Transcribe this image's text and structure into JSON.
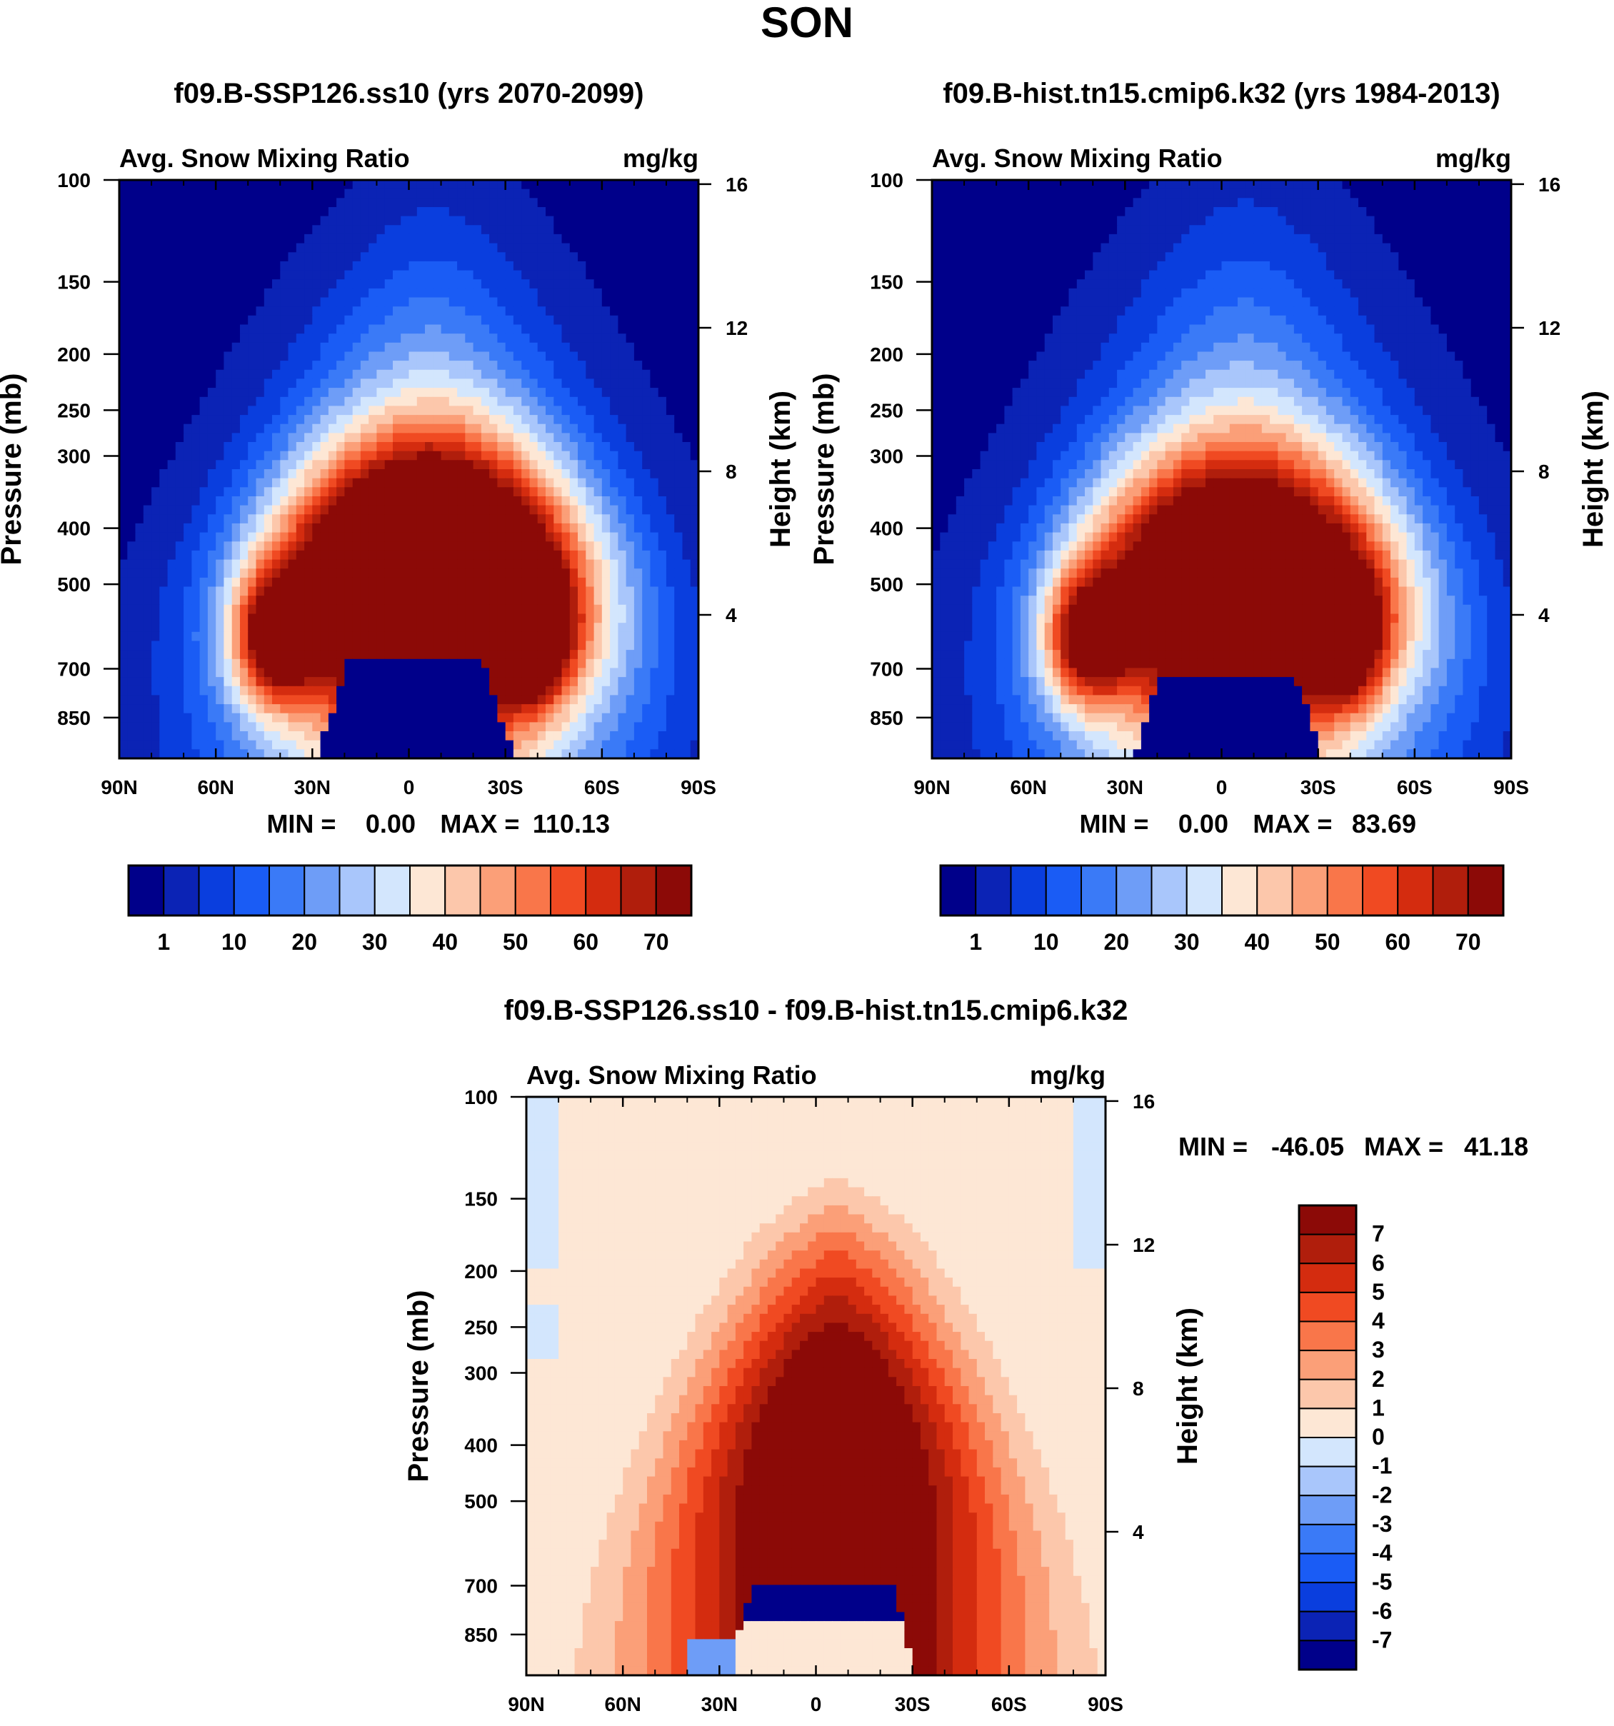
{
  "figure": {
    "title": "SON"
  },
  "colors": {
    "abs_levels": [
      "#00008a",
      "#0b23b5",
      "#0a3ede",
      "#1a5cf5",
      "#3a7af7",
      "#6e9df7",
      "#a9c6fb",
      "#d3e6fd",
      "#fde7d5",
      "#fcc7ab",
      "#fb9f78",
      "#f9764a",
      "#f04a22",
      "#d42c0f",
      "#b01e0c",
      "#8c0a07"
    ],
    "diff_levels": [
      "#00008a",
      "#0b23b5",
      "#0a3ede",
      "#1a5cf5",
      "#3a7af7",
      "#6e9df7",
      "#a9c6fb",
      "#d3e6fd",
      "#fde7d5",
      "#fcc7ab",
      "#fb9f78",
      "#f9764a",
      "#f04a22",
      "#d42c0f",
      "#b01e0c",
      "#8c0a07"
    ]
  },
  "chart_data": [
    {
      "id": "panel-ssp126",
      "type": "heatmap",
      "title": "f09.B-SSP126.ss10 (yrs 2070-2099)",
      "left_label": "Avg. Snow Mixing Ratio",
      "right_label": "mg/kg",
      "xlabel": "",
      "ylabel": "Pressure (mb)",
      "y2label": "Height (km)",
      "x_ticks": [
        "90N",
        "60N",
        "30N",
        "0",
        "30S",
        "60S",
        "90S"
      ],
      "y_ticks": [
        "100",
        "150",
        "200",
        "250",
        "300",
        "400",
        "500",
        "700",
        "850"
      ],
      "y2_ticks": [
        "16",
        "12",
        "8",
        "4"
      ],
      "ylim_mb": [
        100,
        1000
      ],
      "stats": {
        "min_label": "MIN =",
        "min": "0.00",
        "max_label": "MAX =",
        "max": "110.13"
      },
      "peak": 90,
      "top_mb": 180,
      "max_center_mb": 480,
      "surface_hole_mb": 680,
      "colorbar": {
        "orientation": "horizontal",
        "labels": [
          "1",
          "10",
          "20",
          "30",
          "40",
          "50",
          "60",
          "70"
        ]
      }
    },
    {
      "id": "panel-hist",
      "type": "heatmap",
      "title": "f09.B-hist.tn15.cmip6.k32 (yrs 1984-2013)",
      "left_label": "Avg. Snow Mixing Ratio",
      "right_label": "mg/kg",
      "xlabel": "",
      "ylabel": "Pressure (mb)",
      "y2label": "Height (km)",
      "x_ticks": [
        "90N",
        "60N",
        "30N",
        "0",
        "30S",
        "60S",
        "90S"
      ],
      "y_ticks": [
        "100",
        "150",
        "200",
        "250",
        "300",
        "400",
        "500",
        "700",
        "850"
      ],
      "y2_ticks": [
        "16",
        "12",
        "8",
        "4"
      ],
      "ylim_mb": [
        100,
        1000
      ],
      "stats": {
        "min_label": "MIN =",
        "min": "0.00",
        "max_label": "MAX =",
        "max": "83.69"
      },
      "peak": 78,
      "top_mb": 170,
      "max_center_mb": 500,
      "surface_hole_mb": 720,
      "colorbar": {
        "orientation": "horizontal",
        "labels": [
          "1",
          "10",
          "20",
          "30",
          "40",
          "50",
          "60",
          "70"
        ]
      }
    },
    {
      "id": "panel-diff",
      "type": "heatmap",
      "title": "f09.B-SSP126.ss10 - f09.B-hist.tn15.cmip6.k32",
      "left_label": "Avg. Snow Mixing Ratio",
      "right_label": "mg/kg",
      "xlabel": "",
      "ylabel": "Pressure (mb)",
      "y2label": "Height (km)",
      "x_ticks": [
        "90N",
        "60N",
        "30N",
        "0",
        "30S",
        "60S",
        "90S"
      ],
      "y_ticks": [
        "100",
        "150",
        "200",
        "250",
        "300",
        "400",
        "500",
        "700",
        "850"
      ],
      "y2_ticks": [
        "16",
        "12",
        "8",
        "4"
      ],
      "ylim_mb": [
        100,
        1000
      ],
      "stats": {
        "min_label": "MIN =",
        "min": "-46.05",
        "max_label": "MAX =",
        "max": "41.18"
      },
      "colorbar": {
        "orientation": "vertical",
        "labels": [
          "7",
          "6",
          "5",
          "4",
          "3",
          "2",
          "1",
          "0",
          "-1",
          "-2",
          "-3",
          "-4",
          "-5",
          "-6",
          "-7"
        ]
      }
    }
  ]
}
